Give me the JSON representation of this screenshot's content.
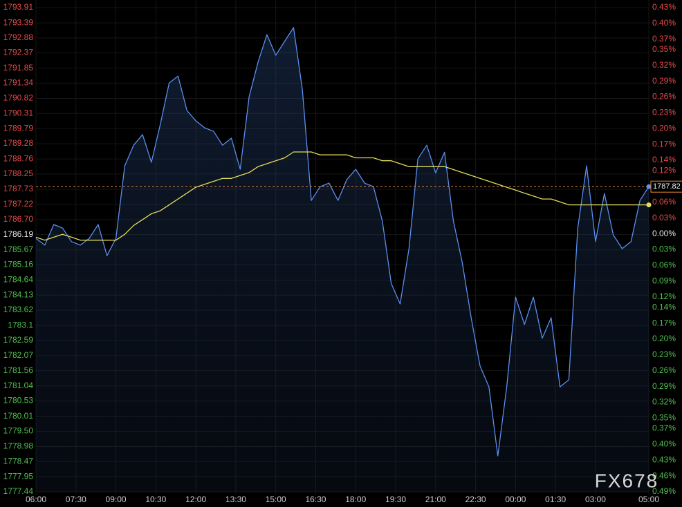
{
  "chart_data": {
    "type": "line",
    "watermark": "FX678",
    "up_color": "#e84b4b",
    "down_color": "#4fc24f",
    "zero_color": "#e8e8e8",
    "grid": true,
    "last_price": 1787.82,
    "last_price_color": "#e8873a",
    "xlim": [
      "06:00",
      "05:00"
    ],
    "xticks": [
      "06:00",
      "07:30",
      "09:00",
      "10:30",
      "12:00",
      "13:30",
      "15:00",
      "16:30",
      "18:00",
      "19:30",
      "21:00",
      "22:30",
      "00:00",
      "01:30",
      "03:00",
      "05:00"
    ],
    "ylim": [
      1777.44,
      1793.91
    ],
    "yticks": [
      1793.91,
      1793.39,
      1792.88,
      1792.37,
      1791.85,
      1791.34,
      1790.82,
      1790.31,
      1789.79,
      1789.28,
      1788.76,
      1788.25,
      1787.73,
      1787.22,
      {
        "value": 1786.7,
        "label": "1786.70"
      },
      1786.19,
      1785.67,
      1785.16,
      1784.64,
      1784.13,
      1783.62,
      1783.1,
      1782.59,
      1782.07,
      1781.56,
      1781.04,
      1780.53,
      1780.01,
      {
        "value": 1779.5,
        "label": "1779.50"
      },
      1778.98,
      1778.47,
      1777.95,
      1777.44
    ],
    "y2lim": [
      -0.49,
      0.43
    ],
    "y2ticks": [
      {
        "value": 0.43,
        "label": "0.43%"
      },
      {
        "value": 0.4,
        "label": "0.40%"
      },
      {
        "value": 0.37,
        "label": "0.37%"
      },
      {
        "value": 0.35,
        "label": "0.35%"
      },
      {
        "value": 0.32,
        "label": "0.32%"
      },
      {
        "value": 0.29,
        "label": "0.29%"
      },
      {
        "value": 0.26,
        "label": "0.26%"
      },
      {
        "value": 0.23,
        "label": "0.23%"
      },
      {
        "value": 0.2,
        "label": "0.20%"
      },
      {
        "value": 0.17,
        "label": "0.17%"
      },
      {
        "value": 0.14,
        "label": "0.14%"
      },
      {
        "value": 0.12,
        "label": "0.12%"
      },
      {
        "value": 0.09,
        "label": "0.09%"
      },
      {
        "value": 0.06,
        "label": "0.06%"
      },
      {
        "value": 0.03,
        "label": "0.03%"
      },
      {
        "value": 0,
        "label": "0.00%"
      },
      {
        "value": -0.03,
        "label": "0.03%"
      },
      {
        "value": -0.06,
        "label": "0.06%"
      },
      {
        "value": -0.09,
        "label": "0.09%"
      },
      {
        "value": -0.12,
        "label": "0.12%"
      },
      {
        "value": -0.14,
        "label": "0.14%"
      },
      {
        "value": -0.17,
        "label": "0.17%"
      },
      {
        "value": -0.2,
        "label": "0.20%"
      },
      {
        "value": -0.23,
        "label": "0.23%"
      },
      {
        "value": -0.26,
        "label": "0.26%"
      },
      {
        "value": -0.29,
        "label": "0.29%"
      },
      {
        "value": -0.32,
        "label": "0.32%"
      },
      {
        "value": -0.35,
        "label": "0.35%"
      },
      {
        "value": -0.37,
        "label": "0.37%"
      },
      {
        "value": -0.4,
        "label": "0.40%"
      },
      {
        "value": -0.43,
        "label": "0.43%"
      },
      {
        "value": -0.46,
        "label": "0.46%"
      },
      {
        "value": -0.49,
        "label": "0.49%"
      }
    ],
    "x": [
      "06:00",
      "06:20",
      "06:40",
      "07:00",
      "07:20",
      "07:40",
      "08:00",
      "08:20",
      "08:40",
      "09:00",
      "09:20",
      "09:40",
      "10:00",
      "10:20",
      "10:40",
      "11:00",
      "11:20",
      "11:40",
      "12:00",
      "12:20",
      "12:40",
      "13:00",
      "13:20",
      "13:40",
      "14:00",
      "14:20",
      "14:40",
      "15:00",
      "15:20",
      "15:40",
      "16:00",
      "16:20",
      "16:40",
      "17:00",
      "17:20",
      "17:40",
      "18:00",
      "18:20",
      "18:40",
      "19:00",
      "19:20",
      "19:40",
      "20:00",
      "20:20",
      "20:40",
      "21:00",
      "21:20",
      "21:40",
      "22:00",
      "22:20",
      "22:40",
      "23:00",
      "23:20",
      "23:40",
      "00:00",
      "00:20",
      "00:40",
      "01:00",
      "01:20",
      "01:40",
      "02:00",
      "02:20",
      "02:40",
      "03:00",
      "03:20",
      "03:40",
      "04:00",
      "04:20",
      "04:40",
      "05:00"
    ],
    "series": [
      {
        "color": "#5b8ff0",
        "fill": true,
        "values": [
          1786.06,
          1785.83,
          1786.53,
          1786.41,
          1785.95,
          1785.83,
          1786.06,
          1786.53,
          1785.47,
          1786.06,
          1788.53,
          1789.23,
          1789.59,
          1788.65,
          1789.94,
          1791.35,
          1791.58,
          1790.41,
          1790.06,
          1789.82,
          1789.7,
          1789.23,
          1789.47,
          1788.41,
          1790.88,
          1792.05,
          1792.99,
          1792.29,
          1792.76,
          1793.23,
          1791.11,
          1787.35,
          1787.82,
          1787.94,
          1787.35,
          1788.06,
          1788.41,
          1787.94,
          1787.82,
          1786.65,
          1784.53,
          1783.83,
          1785.71,
          1788.76,
          1789.23,
          1788.29,
          1788.99,
          1786.65,
          1785.24,
          1783.36,
          1781.72,
          1781.01,
          1778.66,
          1781.01,
          1784.06,
          1783.13,
          1784.06,
          1782.66,
          1783.36,
          1781.01,
          1781.25,
          1786.41,
          1788.53,
          1785.95,
          1787.59,
          1786.18,
          1785.71,
          1785.95,
          1787.35,
          1787.82
        ]
      },
      {
        "color": "#e3dc5a",
        "fill": false,
        "values": [
          1786.1,
          1786.0,
          1786.1,
          1786.2,
          1786.1,
          1786.0,
          1786.0,
          1786.0,
          1786.0,
          1786.0,
          1786.2,
          1786.5,
          1786.7,
          1786.9,
          1787.0,
          1787.2,
          1787.4,
          1787.6,
          1787.8,
          1787.9,
          1788.0,
          1788.1,
          1788.1,
          1788.2,
          1788.3,
          1788.5,
          1788.6,
          1788.7,
          1788.8,
          1789.0,
          1789.0,
          1789.0,
          1788.9,
          1788.9,
          1788.9,
          1788.9,
          1788.8,
          1788.8,
          1788.8,
          1788.7,
          1788.7,
          1788.6,
          1788.5,
          1788.5,
          1788.5,
          1788.5,
          1788.5,
          1788.4,
          1788.3,
          1788.2,
          1788.1,
          1788.0,
          1787.9,
          1787.8,
          1787.7,
          1787.6,
          1787.5,
          1787.4,
          1787.4,
          1787.3,
          1787.2,
          1787.2,
          1787.2,
          1787.2,
          1787.2,
          1787.2,
          1787.2,
          1787.2,
          1787.2,
          1787.2
        ]
      }
    ]
  }
}
